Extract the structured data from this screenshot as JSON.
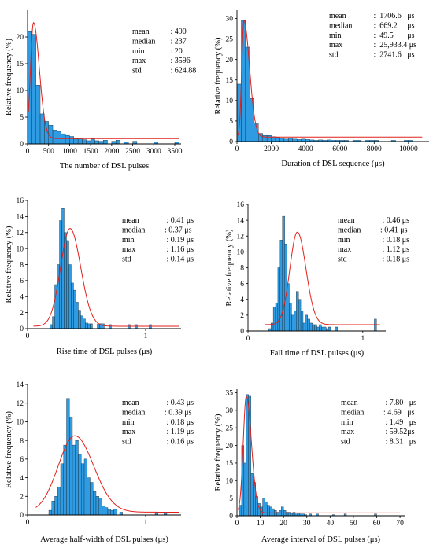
{
  "colors": {
    "bar_fill": "#2e9be3",
    "bar_stroke": "#1a1a1a",
    "fit_curve": "#e0201b",
    "axis": "#000000"
  },
  "chart_data": [
    {
      "type": "bar",
      "xlabel": "The number of DSL pulses",
      "ylabel": "Relative frequency (%)",
      "xlim": [
        0,
        3650
      ],
      "ylim": [
        0,
        25
      ],
      "xticks": [
        0,
        500,
        1000,
        1500,
        2000,
        2500,
        3000,
        3500
      ],
      "xtick_labels": [
        "0",
        "500",
        "1000",
        "1500",
        "2000",
        "2500",
        "3000",
        "3500"
      ],
      "yticks": [
        0,
        5,
        10,
        15,
        20
      ],
      "ytick_labels": [
        "0",
        "5",
        "10",
        "15",
        "20"
      ],
      "bin_start": 0,
      "bin_width": 100,
      "values": [
        21,
        20.5,
        11,
        5.6,
        4.2,
        3.5,
        2.6,
        2.3,
        1.9,
        1.6,
        1.4,
        0.9,
        1.1,
        0.8,
        0.6,
        0.9,
        0.6,
        0.5,
        0.7,
        0,
        0.5,
        0.7,
        0,
        0.4,
        0,
        0.5,
        0,
        0,
        0,
        0,
        0.4,
        0,
        0,
        0,
        0,
        0.4
      ],
      "fit": {
        "peak_x": 140,
        "peak_y": 22.7,
        "sigma_left": 70,
        "sigma_right": 140,
        "baseline": 1.0,
        "x_from": 20,
        "x_to": 3596
      },
      "stats": [
        {
          "name": "mean",
          "sep": " : ",
          "value": "490"
        },
        {
          "name": "median",
          "sep": " : ",
          "value": "237"
        },
        {
          "name": "min",
          "sep": " : ",
          "value": "20"
        },
        {
          "name": "max",
          "sep": " : ",
          "value": "3596"
        },
        {
          "name": "std",
          "sep": " : ",
          "value": "624.88"
        }
      ]
    },
    {
      "type": "bar",
      "xlabel": "Duration of DSL sequence (μs)",
      "ylabel": "Relative frequency (%)",
      "xlim": [
        0,
        11200
      ],
      "ylim": [
        0,
        32
      ],
      "xticks": [
        0,
        2000,
        4000,
        6000,
        8000,
        10000
      ],
      "xtick_labels": [
        "0",
        "2000",
        "4000",
        "6000",
        "8000",
        "10000"
      ],
      "yticks": [
        0,
        5,
        10,
        15,
        20,
        25,
        30
      ],
      "ytick_labels": [
        "0",
        "5",
        "10",
        "15",
        "20",
        "25",
        "30"
      ],
      "bin_start": 0,
      "bin_width": 250,
      "values": [
        14,
        29.5,
        23,
        10.5,
        4.5,
        2,
        1.5,
        1.5,
        1.2,
        1,
        0.8,
        0.6,
        0.8,
        0.6,
        0.5,
        0.6,
        0.5,
        0.4,
        0.3,
        0.4,
        0.3,
        0.4,
        0.3,
        0.3,
        0.3,
        0.3,
        0,
        0.3,
        0.3,
        0,
        0.3,
        0.3,
        0.3,
        0,
        0,
        0,
        0.3,
        0,
        0,
        0.3,
        0.3
      ],
      "fit": {
        "peak_x": 400,
        "peak_y": 29.5,
        "sigma_left": 120,
        "sigma_right": 330,
        "baseline": 1.1,
        "x_from": 50,
        "x_to": 10800
      },
      "stats": [
        {
          "name": "mean",
          "sep": " :  ",
          "value": "1706.6   μs"
        },
        {
          "name": "median",
          "sep": " :  ",
          "value": "669.2     μs"
        },
        {
          "name": "min",
          "sep": " :  ",
          "value": "49.5       μs"
        },
        {
          "name": "max",
          "sep": " :  ",
          "value": "25,933.4 μs"
        },
        {
          "name": "std",
          "sep": " :  ",
          "value": "2741.6   μs"
        }
      ]
    },
    {
      "type": "bar",
      "xlabel": "Rise time of DSL pulses (μs)",
      "ylabel": "Relative frequency (%)",
      "xlim": [
        0,
        1.3
      ],
      "ylim": [
        0,
        16
      ],
      "xticks": [
        0,
        1
      ],
      "xtick_labels": [
        "0",
        "1"
      ],
      "yticks": [
        0,
        2,
        4,
        6,
        8,
        10,
        12,
        14,
        16
      ],
      "ytick_labels": [
        "0",
        "2",
        "4",
        "6",
        "8",
        "10",
        "12",
        "14",
        "16"
      ],
      "bin_start": 0.19,
      "bin_width": 0.02,
      "values": [
        0.5,
        1.5,
        5.5,
        8,
        13.5,
        15,
        12,
        11,
        8,
        5.7,
        4.8,
        3.3,
        2.3,
        1.6,
        1.2,
        0.7,
        0.6,
        0.6,
        0,
        0,
        0.6,
        0.6,
        0.6,
        0,
        0,
        0.5,
        0,
        0,
        0,
        0,
        0,
        0,
        0,
        0.5,
        0,
        0,
        0.5,
        0,
        0,
        0,
        0,
        0,
        0.5
      ],
      "fit": {
        "peak_x": 0.36,
        "peak_y": 12.5,
        "sigma_left": 0.08,
        "sigma_right": 0.09,
        "baseline": 0.3,
        "x_from": 0.05,
        "x_to": 1.28
      },
      "stats": [
        {
          "name": "mean",
          "sep": " : ",
          "value": "0.41 μs"
        },
        {
          "name": "median",
          "sep": ": ",
          "value": "0.37 μs"
        },
        {
          "name": "min",
          "sep": " : ",
          "value": "0.19 μs"
        },
        {
          "name": "max",
          "sep": " : ",
          "value": "1.16 μs"
        },
        {
          "name": "std",
          "sep": " : ",
          "value": "0.14 μs"
        }
      ]
    },
    {
      "type": "bar",
      "xlabel": "Fall time of DSL pulses (μs)",
      "ylabel": "Relative frequency (%)",
      "xlim": [
        0,
        1.2
      ],
      "ylim": [
        0,
        16
      ],
      "xticks": [
        0,
        1
      ],
      "xtick_labels": [
        "0",
        "1"
      ],
      "yticks": [
        0,
        2,
        4,
        6,
        8,
        10,
        12,
        14,
        16
      ],
      "ytick_labels": [
        "0",
        "2",
        "4",
        "6",
        "8",
        "10",
        "12",
        "14",
        "16"
      ],
      "bin_start": 0.18,
      "bin_width": 0.02,
      "values": [
        0.3,
        1,
        3,
        3.5,
        8,
        11.5,
        14.5,
        11,
        6,
        3.5,
        2,
        2.5,
        5,
        4,
        2.5,
        1,
        2,
        1.5,
        1,
        0.8,
        0.8,
        0.5,
        0.8,
        0.5,
        0.5,
        0.3,
        0.5,
        0,
        0,
        0.5,
        0,
        0,
        0,
        0,
        0,
        0,
        0,
        0,
        0,
        0,
        0,
        0,
        0,
        0,
        0,
        0,
        1.5
      ],
      "fit": {
        "peak_x": 0.43,
        "peak_y": 12.5,
        "sigma_left": 0.065,
        "sigma_right": 0.075,
        "baseline": 0.8,
        "x_from": 0.15,
        "x_to": 1.15
      },
      "stats": [
        {
          "name": "mean",
          "sep": " : ",
          "value": "0.46 μs"
        },
        {
          "name": "median",
          "sep": ": ",
          "value": "0.41 μs"
        },
        {
          "name": "min",
          "sep": " : ",
          "value": "0.18 μs"
        },
        {
          "name": "max",
          "sep": " : ",
          "value": "1.12 μs"
        },
        {
          "name": "std",
          "sep": " : ",
          "value": "0.18 μs"
        }
      ]
    },
    {
      "type": "bar",
      "xlabel": "Average half-width of DSL pulses (μs)",
      "ylabel": "Relative frequency (%)",
      "xlim": [
        0,
        1.3
      ],
      "ylim": [
        0,
        14
      ],
      "xticks": [
        0,
        1
      ],
      "xtick_labels": [
        "0",
        "1"
      ],
      "yticks": [
        0,
        2,
        4,
        6,
        8,
        10,
        12,
        14
      ],
      "ytick_labels": [
        "0",
        "2",
        "4",
        "6",
        "8",
        "10",
        "12",
        "14"
      ],
      "bin_start": 0.18,
      "bin_width": 0.025,
      "values": [
        0.5,
        1.5,
        2,
        3,
        5.5,
        7.5,
        12.5,
        10.5,
        7.5,
        8,
        6.5,
        5.5,
        6,
        4,
        3.5,
        2.5,
        2,
        1.8,
        1,
        0.8,
        0.6,
        0.5,
        0.6,
        0,
        0.3,
        0,
        0,
        0,
        0,
        0,
        0,
        0,
        0,
        0,
        0,
        0,
        0.3,
        0,
        0,
        0.3
      ],
      "fit": {
        "peak_x": 0.4,
        "peak_y": 8.5,
        "sigma_left": 0.14,
        "sigma_right": 0.16,
        "baseline": 0.3,
        "x_from": 0.07,
        "x_to": 1.28
      },
      "stats": [
        {
          "name": "mean",
          "sep": " : ",
          "value": "0.43 μs"
        },
        {
          "name": "median",
          "sep": ": ",
          "value": "0.39 μs"
        },
        {
          "name": "min",
          "sep": " : ",
          "value": "0.18 μs"
        },
        {
          "name": "max",
          "sep": " : ",
          "value": "1.19 μs"
        },
        {
          "name": "std",
          "sep": " : ",
          "value": "0.16 μs"
        }
      ]
    },
    {
      "type": "bar",
      "xlabel": "Average interval of DSL pulses (μs)",
      "ylabel": "Relative frequency (%)",
      "xlim": [
        0,
        72
      ],
      "ylim": [
        0,
        36
      ],
      "xticks": [
        0,
        10,
        20,
        30,
        40,
        50,
        60,
        70
      ],
      "xtick_labels": [
        "0",
        "10",
        "20",
        "30",
        "40",
        "50",
        "60",
        "70"
      ],
      "yticks": [
        0,
        5,
        10,
        15,
        20,
        25,
        30,
        35
      ],
      "ytick_labels": [
        "0",
        "5",
        "10",
        "15",
        "20",
        "25",
        "30",
        "35"
      ],
      "bin_start": 1,
      "bin_width": 1,
      "values": [
        3,
        20,
        15,
        34.5,
        34,
        12,
        9.5,
        5.5,
        3.5,
        2.5,
        5,
        4,
        3,
        2.5,
        2,
        1.5,
        1,
        1.5,
        2.5,
        1.5,
        1,
        1,
        0.8,
        1,
        0.5,
        0.8,
        0.5,
        0.5,
        0.3,
        0,
        0.5,
        0,
        0,
        0.5,
        0,
        0,
        0,
        0,
        0,
        0,
        0.3,
        0,
        0,
        0,
        0,
        0.5,
        0,
        0,
        0,
        0,
        0,
        0,
        0,
        0,
        0,
        0,
        0,
        0,
        0.5
      ],
      "fit": {
        "peak_x": 4,
        "peak_y": 34,
        "sigma_left": 1.3,
        "sigma_right": 2.2,
        "baseline": 0.8,
        "x_from": 0.5,
        "x_to": 70
      },
      "stats": [
        {
          "name": "mean",
          "sep": " : ",
          "value": "7.80   μs"
        },
        {
          "name": "median",
          "sep": ": ",
          "value": "4.69   μs"
        },
        {
          "name": "min",
          "sep": " : ",
          "value": "1.49   μs"
        },
        {
          "name": "max",
          "sep": " : ",
          "value": "59.52μs"
        },
        {
          "name": "std",
          "sep": " : ",
          "value": "8.31   μs"
        }
      ]
    }
  ]
}
